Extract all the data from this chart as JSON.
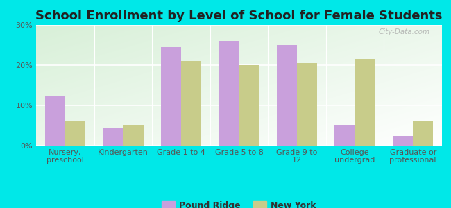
{
  "title": "School Enrollment by Level of School for Female Students",
  "categories": [
    "Nursery,\npreschool",
    "Kindergarten",
    "Grade 1 to 4",
    "Grade 5 to 8",
    "Grade 9 to\n12",
    "College\nundergrad",
    "Graduate or\nprofessional"
  ],
  "pound_ridge": [
    12.5,
    4.5,
    24.5,
    26.0,
    25.0,
    5.0,
    2.5
  ],
  "new_york": [
    6.0,
    5.0,
    21.0,
    20.0,
    20.5,
    21.5,
    6.0
  ],
  "pound_ridge_color": "#c9a0dc",
  "new_york_color": "#c8cc8a",
  "background_color": "#00e8e8",
  "ylim": [
    0,
    30
  ],
  "yticks": [
    0,
    10,
    20,
    30
  ],
  "ytick_labels": [
    "0%",
    "10%",
    "20%",
    "30%"
  ],
  "bar_width": 0.35,
  "legend_pound_ridge": "Pound Ridge",
  "legend_new_york": "New York",
  "watermark": "City-Data.com",
  "title_fontsize": 13,
  "axis_fontsize": 8,
  "legend_fontsize": 9
}
